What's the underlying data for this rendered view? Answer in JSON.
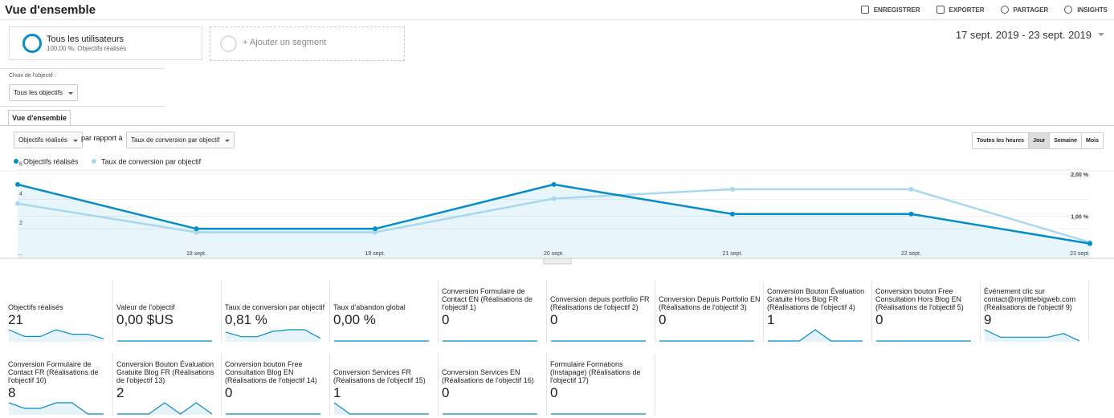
{
  "header": {
    "title": "Vue d'ensemble",
    "actions": [
      "ENREGISTRER",
      "EXPORTER",
      "PARTAGER",
      "INSIGHTS"
    ]
  },
  "segments": {
    "active": {
      "name": "Tous les utilisateurs",
      "detail": "100,00 %, Objectifs réalisés"
    },
    "add": "+ Ajouter un segment"
  },
  "date_range": "17 sept. 2019 - 23 sept. 2019",
  "goal_filter": {
    "label": "Choix de l'objectif :",
    "selected": "Tous les objectifs"
  },
  "tab": "Vue d'ensemble",
  "controls": {
    "metric1": "Objectifs réalisés",
    "versus": "par rapport à",
    "metric2": "Taux de conversion par objectif",
    "periods": [
      "Toutes les heures",
      "Jour",
      "Semaine",
      "Mois"
    ],
    "active_period": 1
  },
  "chart_data": {
    "type": "line",
    "categories": [
      "...",
      "18 sept.",
      "19 sept.",
      "20 sept.",
      "21 sept.",
      "22 sept.",
      "23 sept."
    ],
    "series": [
      {
        "name": "Objectifs réalisés",
        "color": "#058dc7",
        "values": [
          5,
          2,
          2,
          5,
          3,
          3,
          1
        ]
      },
      {
        "name": "Taux de conversion par objectif",
        "color": "#a8d8ef",
        "axis": "y2",
        "values": [
          1.3,
          0.62,
          0.62,
          1.42,
          1.64,
          1.64,
          0.38
        ]
      }
    ],
    "ylim": [
      0,
      6.3
    ],
    "yticks": [
      2,
      4,
      6
    ],
    "y2lim": [
      0,
      2.21
    ],
    "y2ticks": [
      {
        "value": 1,
        "label": "1,00 %"
      },
      {
        "value": 2,
        "label": "2,00 %"
      }
    ],
    "grid": true,
    "area": true
  },
  "tiles": [
    {
      "label": "Objectifs réalisés",
      "value": "21",
      "trend": [
        5,
        2,
        2,
        5,
        3,
        3,
        1
      ]
    },
    {
      "label": "Valeur de l'objectif",
      "value": "0,00 $US",
      "trend": [
        0,
        0,
        0,
        0,
        0,
        0,
        0
      ]
    },
    {
      "label": "Taux de conversion par objectif",
      "value": "0,81 %",
      "trend": [
        1.3,
        0.62,
        0.62,
        1.42,
        1.64,
        1.64,
        0.38
      ]
    },
    {
      "label": "Taux d'abandon global",
      "value": "0,00 %",
      "trend": [
        0,
        0,
        0,
        0,
        0,
        0,
        0
      ]
    },
    {
      "label": "Conversion Formulaire de Contact EN (Réalisations de l'objectif 1)",
      "value": "0",
      "trend": [
        0,
        0,
        0,
        0,
        0,
        0,
        0
      ]
    },
    {
      "label": "Conversion depuis portfolio FR (Réalisations de l'objectif 2)",
      "value": "0",
      "trend": [
        0,
        0,
        0,
        0,
        0,
        0,
        0
      ]
    },
    {
      "label": "Conversion Depuis Portfolio EN (Réalisations de l'objectif 3)",
      "value": "0",
      "trend": [
        0,
        0,
        0,
        0,
        0,
        0,
        0
      ]
    },
    {
      "label": "Conversion Bouton Évaluation Gratuite Hors Blog FR (Réalisations de l'objectif 4)",
      "value": "1",
      "trend": [
        0,
        0,
        0,
        1,
        0,
        0,
        0
      ]
    },
    {
      "label": "Conversion bouton Free Consultation Hors Blog EN (Réalisations de l'objectif 5)",
      "value": "0",
      "trend": [
        0,
        0,
        0,
        0,
        0,
        0,
        0
      ]
    },
    {
      "label": "Événement clic sur contact@mylittlebigweb.com (Réalisations de l'objectif 9)",
      "value": "9",
      "trend": [
        3,
        1,
        1,
        1,
        1,
        2,
        0
      ]
    },
    {
      "label": "Conversion Formulaire de Contact FR (Réalisations de l'objectif 10)",
      "value": "8",
      "trend": [
        2,
        1,
        1,
        2,
        2,
        0,
        0
      ]
    },
    {
      "label": "Conversion Bouton Évaluation Gratuite Blog FR (Réalisations de l'objectif 13)",
      "value": "2",
      "trend": [
        0,
        0,
        0,
        1,
        0,
        1,
        0
      ]
    },
    {
      "label": "Conversion bouton Free Consultation Blog EN (Réalisations de l'objectif 14)",
      "value": "0",
      "trend": [
        0,
        0,
        0,
        0,
        0,
        0,
        0
      ]
    },
    {
      "label": "Conversion Services FR (Réalisations de l'objectif 15)",
      "value": "1",
      "trend": [
        1,
        0,
        0,
        0,
        0,
        0,
        0
      ]
    },
    {
      "label": "Conversion Services EN (Réalisations de l'objectif 16)",
      "value": "0",
      "trend": [
        0,
        0,
        0,
        0,
        0,
        0,
        0
      ]
    },
    {
      "label": "Formulaire Formations (Instapage) (Réalisations de l'objectif 17)",
      "value": "0",
      "trend": [
        0,
        0,
        0,
        0,
        0,
        0,
        0
      ]
    }
  ]
}
